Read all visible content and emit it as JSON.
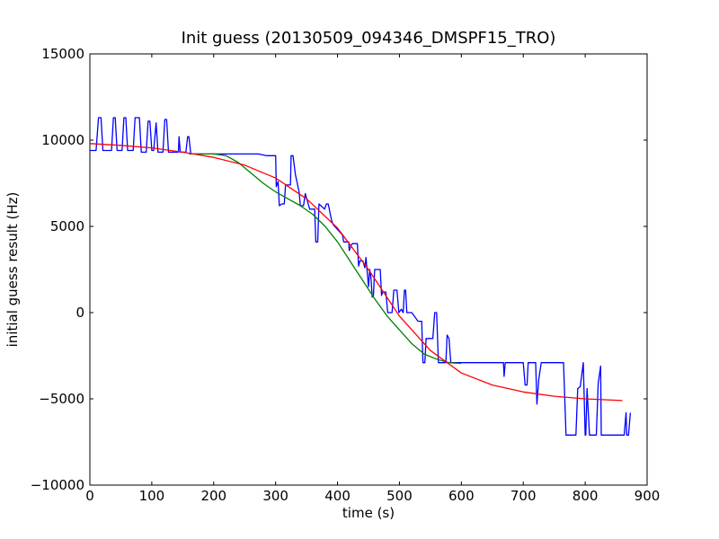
{
  "chart_data": {
    "type": "line",
    "title": "Init guess (20130509_094346_DMSPF15_TRO)",
    "xlabel": "time (s)",
    "ylabel": "initial guess result (Hz)",
    "xlim": [
      0,
      900
    ],
    "ylim": [
      -10000,
      15000
    ],
    "x_ticks": [
      0,
      100,
      200,
      300,
      400,
      500,
      600,
      700,
      800,
      900
    ],
    "y_ticks": [
      -10000,
      -5000,
      0,
      5000,
      10000,
      15000
    ],
    "grid": false,
    "legend": "none",
    "series": [
      {
        "color": "#0000ff",
        "points": [
          [
            0,
            9400
          ],
          [
            10,
            9400
          ],
          [
            14,
            11300
          ],
          [
            18,
            11300
          ],
          [
            21,
            9400
          ],
          [
            35,
            9400
          ],
          [
            38,
            11300
          ],
          [
            41,
            11300
          ],
          [
            44,
            9400
          ],
          [
            52,
            9400
          ],
          [
            55,
            11300
          ],
          [
            58,
            11300
          ],
          [
            61,
            9400
          ],
          [
            70,
            9400
          ],
          [
            73,
            11300
          ],
          [
            80,
            11300
          ],
          [
            83,
            9300
          ],
          [
            91,
            9300
          ],
          [
            94,
            11100
          ],
          [
            97,
            11100
          ],
          [
            100,
            9400
          ],
          [
            103,
            9400
          ],
          [
            107,
            11000
          ],
          [
            110,
            9300
          ],
          [
            118,
            9300
          ],
          [
            121,
            11200
          ],
          [
            124,
            11200
          ],
          [
            127,
            9300
          ],
          [
            143,
            9300
          ],
          [
            144,
            10200
          ],
          [
            146,
            9300
          ],
          [
            155,
            9300
          ],
          [
            158,
            10200
          ],
          [
            160,
            10200
          ],
          [
            163,
            9200
          ],
          [
            255,
            9200
          ],
          [
            272,
            9200
          ],
          [
            285,
            9100
          ],
          [
            300,
            9100
          ],
          [
            301,
            7300
          ],
          [
            304,
            7600
          ],
          [
            306,
            6200
          ],
          [
            310,
            6300
          ],
          [
            314,
            6300
          ],
          [
            316,
            7400
          ],
          [
            324,
            7400
          ],
          [
            325,
            9100
          ],
          [
            328,
            9100
          ],
          [
            332,
            8000
          ],
          [
            338,
            7000
          ],
          [
            340,
            6200
          ],
          [
            345,
            6200
          ],
          [
            348,
            6900
          ],
          [
            355,
            6000
          ],
          [
            363,
            6000
          ],
          [
            365,
            4100
          ],
          [
            368,
            4100
          ],
          [
            370,
            6300
          ],
          [
            379,
            6000
          ],
          [
            382,
            6300
          ],
          [
            385,
            6300
          ],
          [
            390,
            5400
          ],
          [
            393,
            5100
          ],
          [
            398,
            4900
          ],
          [
            408,
            4500
          ],
          [
            410,
            4100
          ],
          [
            418,
            4100
          ],
          [
            419,
            3600
          ],
          [
            422,
            3900
          ],
          [
            424,
            4000
          ],
          [
            432,
            4000
          ],
          [
            434,
            2700
          ],
          [
            436,
            3000
          ],
          [
            441,
            3000
          ],
          [
            444,
            2600
          ],
          [
            446,
            3200
          ],
          [
            450,
            1500
          ],
          [
            452,
            2500
          ],
          [
            454,
            2000
          ],
          [
            456,
            900
          ],
          [
            458,
            1000
          ],
          [
            460,
            2500
          ],
          [
            469,
            2500
          ],
          [
            471,
            1000
          ],
          [
            473,
            1200
          ],
          [
            478,
            1200
          ],
          [
            481,
            0
          ],
          [
            488,
            0
          ],
          [
            491,
            1300
          ],
          [
            496,
            1300
          ],
          [
            499,
            0
          ],
          [
            503,
            200
          ],
          [
            506,
            0
          ],
          [
            508,
            1300
          ],
          [
            510,
            1300
          ],
          [
            512,
            0
          ],
          [
            520,
            0
          ],
          [
            530,
            -500
          ],
          [
            536,
            -500
          ],
          [
            538,
            -2900
          ],
          [
            541,
            -2900
          ],
          [
            543,
            -1500
          ],
          [
            554,
            -1500
          ],
          [
            557,
            0
          ],
          [
            560,
            0
          ],
          [
            563,
            -2900
          ],
          [
            575,
            -2900
          ],
          [
            577,
            -1300
          ],
          [
            580,
            -1500
          ],
          [
            583,
            -2900
          ],
          [
            668,
            -2900
          ],
          [
            669,
            -3700
          ],
          [
            671,
            -2900
          ],
          [
            700,
            -2900
          ],
          [
            703,
            -4200
          ],
          [
            706,
            -4200
          ],
          [
            708,
            -2900
          ],
          [
            720,
            -2900
          ],
          [
            722,
            -5300
          ],
          [
            725,
            -3900
          ],
          [
            729,
            -2900
          ],
          [
            765,
            -2900
          ],
          [
            769,
            -7100
          ],
          [
            785,
            -7100
          ],
          [
            788,
            -4400
          ],
          [
            792,
            -4300
          ],
          [
            797,
            -2900
          ],
          [
            800,
            -7100
          ],
          [
            801,
            -7100
          ],
          [
            803,
            -4400
          ],
          [
            807,
            -7100
          ],
          [
            818,
            -7100
          ],
          [
            821,
            -4100
          ],
          [
            825,
            -3100
          ],
          [
            826,
            -7100
          ],
          [
            863,
            -7100
          ],
          [
            866,
            -5800
          ],
          [
            867,
            -7100
          ],
          [
            870,
            -7100
          ],
          [
            873,
            -5800
          ]
        ]
      },
      {
        "color": "#008000",
        "points": [
          [
            160,
            9200
          ],
          [
            200,
            9200
          ],
          [
            220,
            9100
          ],
          [
            240,
            8700
          ],
          [
            260,
            8100
          ],
          [
            280,
            7500
          ],
          [
            300,
            7000
          ],
          [
            320,
            6600
          ],
          [
            340,
            6200
          ],
          [
            360,
            5700
          ],
          [
            380,
            5000
          ],
          [
            400,
            4100
          ],
          [
            420,
            3000
          ],
          [
            440,
            1900
          ],
          [
            460,
            800
          ],
          [
            480,
            -200
          ],
          [
            500,
            -1000
          ],
          [
            520,
            -1800
          ],
          [
            540,
            -2400
          ],
          [
            560,
            -2700
          ],
          [
            580,
            -2900
          ],
          [
            600,
            -2950
          ]
        ]
      },
      {
        "color": "#ff0000",
        "points": [
          [
            0,
            9800
          ],
          [
            50,
            9700
          ],
          [
            100,
            9550
          ],
          [
            150,
            9300
          ],
          [
            200,
            9000
          ],
          [
            250,
            8550
          ],
          [
            300,
            7800
          ],
          [
            350,
            6600
          ],
          [
            400,
            4900
          ],
          [
            450,
            2500
          ],
          [
            500,
            -200
          ],
          [
            550,
            -2200
          ],
          [
            600,
            -3500
          ],
          [
            650,
            -4200
          ],
          [
            700,
            -4600
          ],
          [
            750,
            -4850
          ],
          [
            800,
            -5000
          ],
          [
            860,
            -5100
          ]
        ]
      }
    ]
  }
}
